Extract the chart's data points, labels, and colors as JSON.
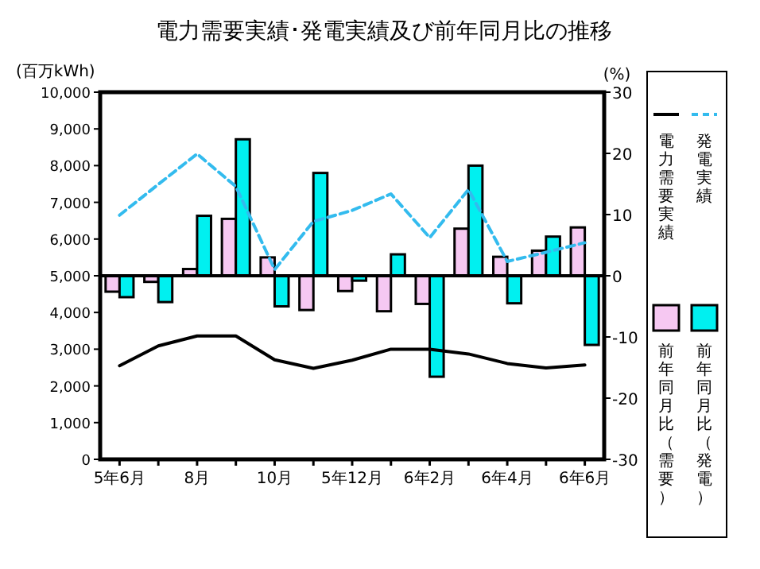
{
  "chart_data": {
    "type": "bar",
    "title": "電力需要実績･発電実績及び前年同月比の推移",
    "ylabel": "(百万kWh)",
    "y2label": "(%)",
    "categories": [
      "5年6月",
      null,
      "8月",
      null,
      "10月",
      null,
      "5年12月",
      null,
      "6年2月",
      null,
      "6年4月",
      null,
      "6年6月"
    ],
    "series": [
      {
        "name": "電力需要実績",
        "type": "line",
        "color": "#000000",
        "line_style": "solid",
        "values": [
          2550,
          3090,
          3360,
          3360,
          2710,
          2480,
          2700,
          3000,
          3000,
          2870,
          2610,
          2490,
          2570
        ]
      },
      {
        "name": "発電実績",
        "type": "line",
        "color": "#33bbee",
        "line_style": "dashed",
        "values": [
          6650,
          7490,
          8320,
          7430,
          5170,
          6480,
          6780,
          7230,
          6040,
          7350,
          5390,
          5640,
          5900
        ]
      },
      {
        "name": "前年同月比（需要）",
        "axis": "y2",
        "color": "#f6c8f2",
        "values": [
          -2.6,
          -1.0,
          1.1,
          9.3,
          3.0,
          -5.6,
          -2.5,
          -5.8,
          -4.6,
          7.7,
          3.1,
          4.1,
          7.9
        ]
      },
      {
        "name": "前年同月比（発電）",
        "axis": "y2",
        "color": "#00f0f0",
        "values": [
          -3.5,
          -4.3,
          9.8,
          22.3,
          -5.0,
          16.8,
          -0.8,
          3.5,
          -16.5,
          18.0,
          -4.5,
          6.4,
          -11.3
        ]
      }
    ],
    "ylim": [
      0,
      10000
    ],
    "yticks": [
      0,
      {
        "value": 1000,
        "label": "1,000"
      },
      {
        "value": 2000,
        "label": "2,000"
      },
      {
        "value": 3000,
        "label": "3,000"
      },
      {
        "value": 4000,
        "label": "4,000"
      },
      {
        "value": 5000,
        "label": "5,000"
      },
      {
        "value": 6000,
        "label": "6,000"
      },
      {
        "value": 7000,
        "label": "7,000"
      },
      {
        "value": 8000,
        "label": "8,000"
      },
      {
        "value": 9000,
        "label": "9,000"
      },
      {
        "value": 10000,
        "label": "10,000"
      }
    ],
    "y2lim": [
      -30,
      30
    ],
    "y2ticks": [
      -30,
      -20,
      -10,
      0,
      10,
      20,
      30
    ],
    "ref_lines": [
      {
        "axis": "y2",
        "value": 0
      }
    ],
    "grid": false,
    "legend": "right",
    "marker": "none"
  }
}
